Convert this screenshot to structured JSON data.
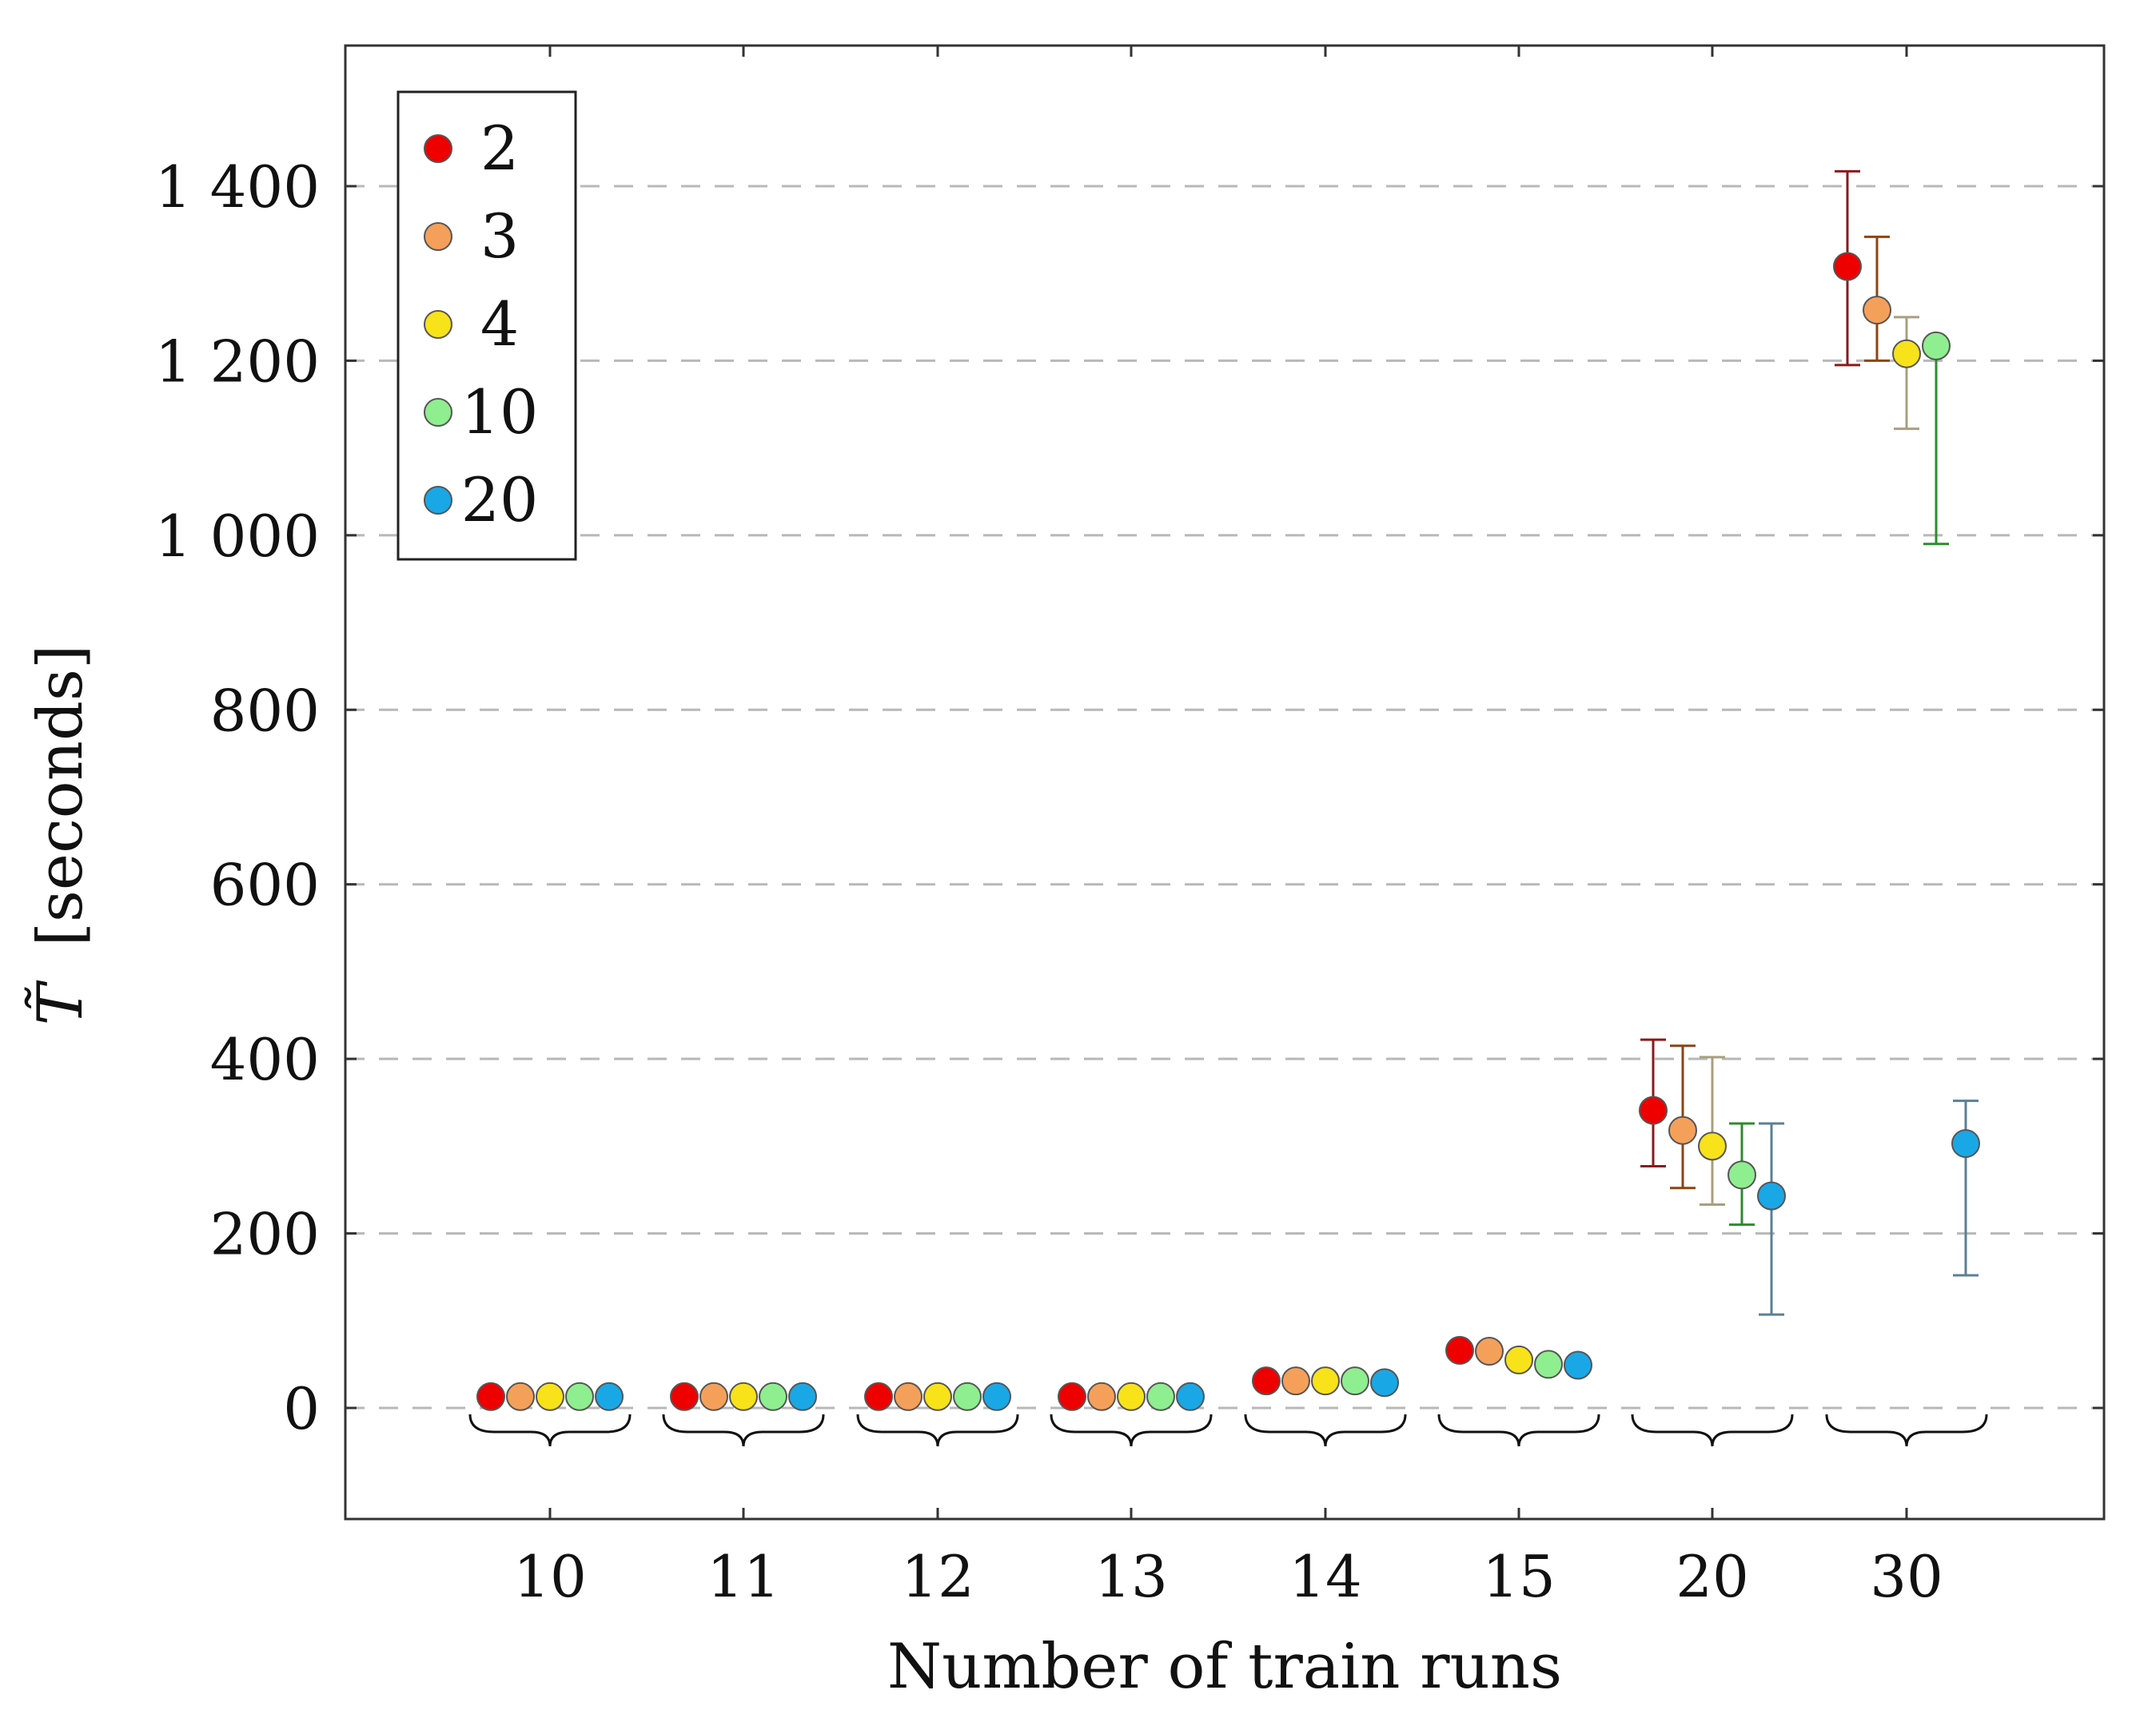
{
  "chart_data": {
    "type": "scatter",
    "title": "",
    "xlabel": "Number of train runs",
    "ylabel": "T̃ [seconds]",
    "ylabel_symbol": "T̃",
    "ylabel_unit": "[seconds]",
    "ylim": [
      -130,
      1560
    ],
    "yticks": [
      0,
      200,
      400,
      600,
      800,
      1000,
      1200,
      1400
    ],
    "ytick_labels": [
      "0",
      "200",
      "400",
      "600",
      "800",
      "1 000",
      "1 200",
      "1 400"
    ],
    "grid": "horizontal dashed",
    "legend_position": "top-left",
    "categories": [
      "10",
      "11",
      "12",
      "13",
      "14",
      "15",
      "20",
      "30"
    ],
    "series": [
      {
        "name": "2",
        "color": "#ee0000",
        "errcolor": "#8b1a1a",
        "values": [
          13,
          13,
          13,
          13,
          31,
          66,
          341,
          1308
        ],
        "err_low": [
          null,
          null,
          null,
          null,
          null,
          null,
          277,
          1195
        ],
        "err_high": [
          null,
          null,
          null,
          null,
          null,
          null,
          422,
          1417
        ]
      },
      {
        "name": "3",
        "color": "#f5a05a",
        "errcolor": "#8b4513",
        "values": [
          13,
          13,
          13,
          13,
          31,
          65,
          318,
          1258
        ],
        "err_low": [
          null,
          null,
          null,
          null,
          null,
          null,
          252,
          1200
        ],
        "err_high": [
          null,
          null,
          null,
          null,
          null,
          null,
          415,
          1342
        ]
      },
      {
        "name": "4",
        "color": "#f8e21a",
        "errcolor": "#a89f80",
        "values": [
          13,
          13,
          13,
          13,
          31,
          55,
          300,
          1208
        ],
        "err_low": [
          null,
          null,
          null,
          null,
          null,
          null,
          233,
          1122
        ],
        "err_high": [
          null,
          null,
          null,
          null,
          null,
          null,
          402,
          1250
        ]
      },
      {
        "name": "10",
        "color": "#8fee90",
        "errcolor": "#2e8b2e",
        "values": [
          13,
          13,
          13,
          13,
          31,
          50,
          267,
          1217
        ],
        "err_low": [
          null,
          null,
          null,
          null,
          null,
          null,
          210,
          990
        ],
        "err_high": [
          null,
          null,
          null,
          null,
          null,
          null,
          326,
          1217
        ]
      },
      {
        "name": "20",
        "color": "#1aa7e6",
        "errcolor": "#5b7f99",
        "values": [
          13,
          13,
          13,
          13,
          29,
          49,
          243,
          303
        ],
        "err_low": [
          null,
          null,
          null,
          null,
          null,
          null,
          107,
          152
        ],
        "err_high": [
          null,
          null,
          null,
          null,
          null,
          null,
          326,
          352
        ]
      }
    ]
  }
}
